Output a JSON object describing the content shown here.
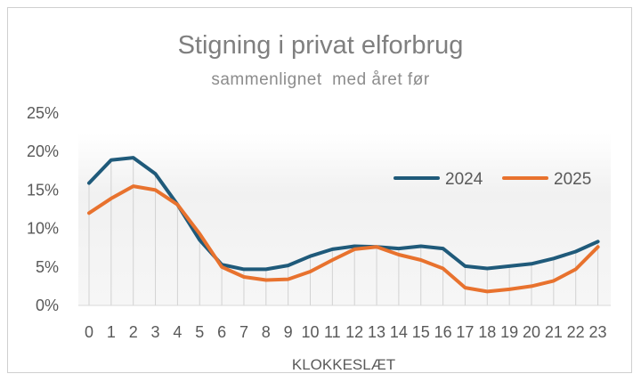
{
  "chart_data": {
    "type": "line",
    "title": "Stigning i privat elforbrug",
    "subtitle": "sammenlignet  med året før",
    "xlabel": "KLOKKESLÆT",
    "ylabel": "",
    "categories": [
      "0",
      "1",
      "2",
      "3",
      "4",
      "5",
      "6",
      "7",
      "8",
      "9",
      "10",
      "11",
      "12",
      "13",
      "14",
      "15",
      "16",
      "17",
      "18",
      "19",
      "20",
      "21",
      "22",
      "23"
    ],
    "y_ticks": [
      "0%",
      "5%",
      "10%",
      "15%",
      "20%",
      "25%"
    ],
    "ylim": [
      0,
      25
    ],
    "grid": "vertical drop lines",
    "legend_position": "right",
    "series": [
      {
        "name": "2024",
        "color": "#1f5a7a",
        "values": [
          15.9,
          18.9,
          19.2,
          17.1,
          13.1,
          8.5,
          5.3,
          4.7,
          4.7,
          5.2,
          6.4,
          7.3,
          7.7,
          7.6,
          7.4,
          7.7,
          7.4,
          5.1,
          4.8,
          5.1,
          5.4,
          6.1,
          7.0,
          8.3
        ]
      },
      {
        "name": "2025",
        "color": "#e8722e",
        "values": [
          12.0,
          13.9,
          15.5,
          15.0,
          13.1,
          9.3,
          5.0,
          3.7,
          3.3,
          3.4,
          4.4,
          5.9,
          7.3,
          7.6,
          6.6,
          5.9,
          4.8,
          2.3,
          1.8,
          2.1,
          2.5,
          3.2,
          4.7,
          7.6
        ]
      }
    ]
  }
}
